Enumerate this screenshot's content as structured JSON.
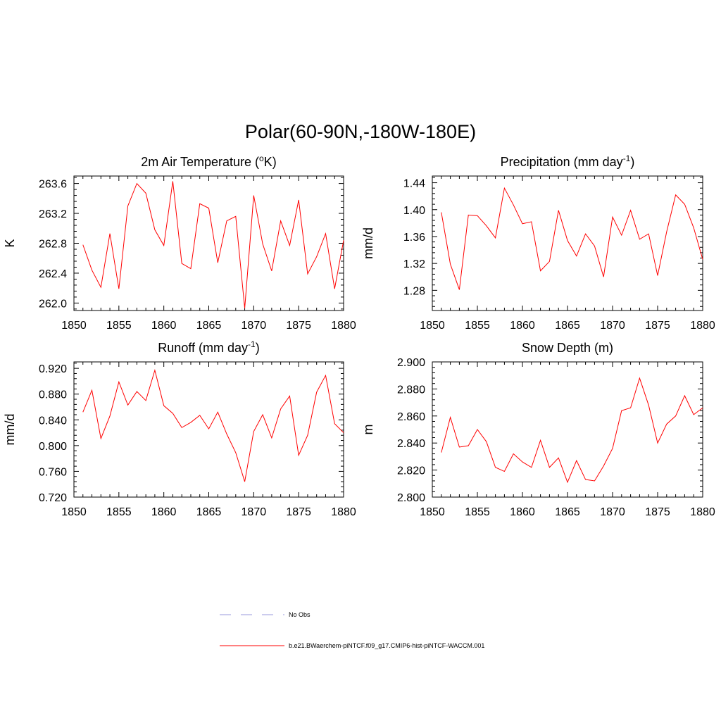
{
  "figure": {
    "title": "Polar(60-90N,-180W-180E)"
  },
  "chart_data": [
    {
      "type": "line",
      "title_main": "2m Air Temperature (",
      "title_sup_pre": "o",
      "title_after": "K)",
      "title_sup_post": "",
      "title_end": "",
      "ylabel": "K",
      "xlim": [
        1850,
        1880
      ],
      "ylim": [
        261.9,
        263.7
      ],
      "xticks": [
        1850,
        1855,
        1860,
        1865,
        1870,
        1875,
        1880
      ],
      "yticks": [
        262.0,
        262.4,
        262.8,
        263.2,
        263.6
      ],
      "ytick_decimals": 1,
      "x": [
        1851,
        1852,
        1853,
        1854,
        1855,
        1856,
        1857,
        1858,
        1859,
        1860,
        1861,
        1862,
        1863,
        1864,
        1865,
        1866,
        1867,
        1868,
        1869,
        1870,
        1871,
        1872,
        1873,
        1874,
        1875,
        1876,
        1877,
        1878,
        1879,
        1880
      ],
      "series": [
        {
          "color": "#ff0000",
          "values": [
            262.78,
            262.44,
            262.21,
            262.93,
            262.19,
            263.3,
            263.6,
            263.47,
            262.98,
            262.77,
            263.63,
            262.53,
            262.46,
            263.33,
            263.27,
            262.54,
            263.1,
            263.16,
            261.93,
            263.44,
            262.79,
            262.43,
            263.1,
            262.77,
            263.38,
            262.39,
            262.62,
            262.93,
            262.19,
            262.84
          ]
        }
      ]
    },
    {
      "type": "line",
      "title_main": "Precipitation (mm day",
      "title_sup_pre": "",
      "title_after": "",
      "title_sup_post": "-1",
      "title_end": ")",
      "ylabel": "mm/d",
      "xlim": [
        1850,
        1880
      ],
      "ylim": [
        1.25,
        1.45
      ],
      "xticks": [
        1850,
        1855,
        1860,
        1865,
        1870,
        1875,
        1880
      ],
      "yticks": [
        1.28,
        1.32,
        1.36,
        1.4,
        1.44
      ],
      "ytick_decimals": 2,
      "x": [
        1851,
        1852,
        1853,
        1854,
        1855,
        1856,
        1857,
        1858,
        1859,
        1860,
        1861,
        1862,
        1863,
        1864,
        1865,
        1866,
        1867,
        1868,
        1869,
        1870,
        1871,
        1872,
        1873,
        1874,
        1875,
        1876,
        1877,
        1878,
        1879,
        1880
      ],
      "series": [
        {
          "color": "#ff0000",
          "values": [
            1.396,
            1.319,
            1.281,
            1.392,
            1.391,
            1.376,
            1.358,
            1.432,
            1.407,
            1.379,
            1.382,
            1.309,
            1.323,
            1.399,
            1.354,
            1.331,
            1.364,
            1.346,
            1.3,
            1.389,
            1.362,
            1.399,
            1.356,
            1.364,
            1.302,
            1.367,
            1.422,
            1.408,
            1.373,
            1.326
          ]
        }
      ]
    },
    {
      "type": "line",
      "title_main": "Runoff (mm day",
      "title_sup_pre": "",
      "title_after": "",
      "title_sup_post": "-1",
      "title_end": ")",
      "ylabel": "mm/d",
      "xlim": [
        1850,
        1880
      ],
      "ylim": [
        0.72,
        0.93
      ],
      "xticks": [
        1850,
        1855,
        1860,
        1865,
        1870,
        1875,
        1880
      ],
      "yticks": [
        0.72,
        0.76,
        0.8,
        0.84,
        0.88,
        0.92
      ],
      "ytick_decimals": 3,
      "x": [
        1851,
        1852,
        1853,
        1854,
        1855,
        1856,
        1857,
        1858,
        1859,
        1860,
        1861,
        1862,
        1863,
        1864,
        1865,
        1866,
        1867,
        1868,
        1869,
        1870,
        1871,
        1872,
        1873,
        1874,
        1875,
        1876,
        1877,
        1878,
        1879,
        1880
      ],
      "series": [
        {
          "color": "#ff0000",
          "values": [
            0.852,
            0.886,
            0.811,
            0.846,
            0.899,
            0.863,
            0.884,
            0.87,
            0.917,
            0.862,
            0.85,
            0.828,
            0.836,
            0.847,
            0.826,
            0.852,
            0.818,
            0.789,
            0.744,
            0.822,
            0.848,
            0.812,
            0.857,
            0.877,
            0.785,
            0.816,
            0.883,
            0.909,
            0.834,
            0.82
          ]
        }
      ]
    },
    {
      "type": "line",
      "title_main": "Snow Depth (m)",
      "title_sup_pre": "",
      "title_after": "",
      "title_sup_post": "",
      "title_end": "",
      "ylabel": "m",
      "xlim": [
        1850,
        1880
      ],
      "ylim": [
        2.8,
        2.9
      ],
      "xticks": [
        1850,
        1855,
        1860,
        1865,
        1870,
        1875,
        1880
      ],
      "yticks": [
        2.8,
        2.82,
        2.84,
        2.86,
        2.88,
        2.9
      ],
      "ytick_decimals": 3,
      "x": [
        1851,
        1852,
        1853,
        1854,
        1855,
        1856,
        1857,
        1858,
        1859,
        1860,
        1861,
        1862,
        1863,
        1864,
        1865,
        1866,
        1867,
        1868,
        1869,
        1870,
        1871,
        1872,
        1873,
        1874,
        1875,
        1876,
        1877,
        1878,
        1879,
        1880
      ],
      "series": [
        {
          "color": "#ff0000",
          "values": [
            2.833,
            2.859,
            2.837,
            2.838,
            2.85,
            2.841,
            2.822,
            2.819,
            2.832,
            2.826,
            2.822,
            2.842,
            2.822,
            2.829,
            2.811,
            2.827,
            2.813,
            2.812,
            2.823,
            2.836,
            2.864,
            2.866,
            2.888,
            2.868,
            2.84,
            2.854,
            2.86,
            2.875,
            2.861,
            2.866
          ]
        }
      ]
    }
  ],
  "legend": {
    "items": [
      {
        "label": "No Obs",
        "style": "dashed",
        "color": "#9999dd"
      },
      {
        "label": "b.e21.BWaerchem-piNTCF.f09_g17.CMIP6-hist-piNTCF-WACCM.001",
        "style": "solid",
        "color": "#ff0000"
      }
    ]
  }
}
